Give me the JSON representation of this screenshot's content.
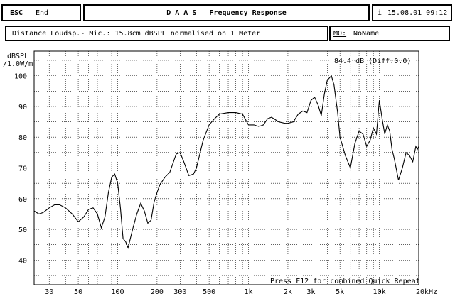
{
  "header": {
    "esc_key": "ESC",
    "end_label": "End",
    "title": "D A A S   Frequency Response",
    "info_key": "i",
    "datetime": "15.08.01 09:12"
  },
  "info_bar": {
    "description": "Distance Loudsp.- Mic.: 15.8cm dBSPL normalised on 1 Meter",
    "mo_label": "MO:",
    "mo_value": "NoName"
  },
  "readout": "84.4 dB (Diff:0.0)",
  "footer_hint": "Press F12 for combined Quick Repeat",
  "chart_data": {
    "type": "line",
    "title": "",
    "ylabel_line1": "dBSPL",
    "ylabel_line2": "/1.0W/m",
    "xlabel": "",
    "x_scale": "log",
    "xlim": [
      23,
      20000
    ],
    "ylim": [
      32,
      108
    ],
    "grid": true,
    "y_ticks": [
      40,
      50,
      60,
      70,
      80,
      90,
      100
    ],
    "y_tick_labels": [
      "40",
      "50",
      "60",
      "70",
      "80",
      "90",
      "100"
    ],
    "x_ticks": [
      30,
      50,
      100,
      200,
      300,
      500,
      1000,
      2000,
      3000,
      5000,
      10000,
      20000
    ],
    "x_tick_labels": [
      "30",
      "50",
      "100",
      "200",
      "300",
      "500",
      "1k",
      "2k",
      "3k",
      "5k",
      "10k",
      "20kHz"
    ],
    "series": [
      {
        "color": "#000000",
        "x": [
          23,
          25,
          27,
          30,
          33,
          36,
          40,
          45,
          50,
          55,
          60,
          65,
          70,
          75,
          80,
          85,
          90,
          95,
          100,
          105,
          110,
          115,
          120,
          125,
          130,
          140,
          150,
          160,
          170,
          180,
          190,
          200,
          210,
          230,
          250,
          280,
          300,
          320,
          350,
          380,
          400,
          450,
          500,
          550,
          600,
          700,
          800,
          900,
          1000,
          1100,
          1200,
          1300,
          1400,
          1500,
          1700,
          1900,
          2000,
          2200,
          2400,
          2600,
          2800,
          3000,
          3200,
          3400,
          3600,
          3800,
          4000,
          4300,
          4500,
          4800,
          5000,
          5500,
          6000,
          6500,
          7000,
          7500,
          8000,
          8500,
          9000,
          9500,
          10000,
          10500,
          11000,
          11500,
          12000,
          12500,
          13000,
          14000,
          15000,
          16000,
          17000,
          18000,
          19000,
          19500,
          20000
        ],
        "y": [
          56,
          55,
          55.5,
          57,
          58,
          58,
          57,
          55,
          52.5,
          54,
          56.5,
          57,
          55,
          50.5,
          54,
          62,
          67,
          68,
          65,
          57,
          47,
          46,
          44,
          47,
          50,
          55,
          58.5,
          56,
          52,
          53,
          59,
          62,
          64.5,
          67,
          68.5,
          74.5,
          75,
          72,
          67.5,
          68,
          70,
          79,
          84,
          86,
          87.5,
          88,
          88,
          87.5,
          84,
          84,
          83.5,
          84,
          86,
          86.5,
          85,
          84.5,
          84.5,
          85,
          87.5,
          88.5,
          88,
          92,
          93,
          90.5,
          87,
          94,
          98.5,
          100,
          97,
          88,
          80,
          74,
          70,
          78,
          82,
          81,
          77,
          79,
          83,
          81,
          92,
          86,
          81,
          84,
          82,
          76,
          73,
          66,
          70,
          75,
          74,
          72,
          77,
          76,
          77
        ]
      }
    ]
  }
}
